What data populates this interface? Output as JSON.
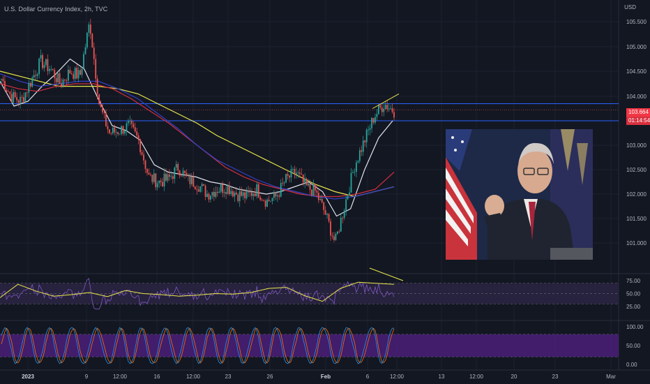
{
  "chart_header": {
    "title": "U.S. Dollar Currency Index, 2h, TVC",
    "currency": "USD"
  },
  "price_tags": {
    "last_price": "103.664",
    "countdown": "01:14:54"
  },
  "colors": {
    "background": "#131722",
    "up_candle": "#26a69a",
    "down_candle": "#ef5350",
    "ma_white": "#e0e3eb",
    "ma_yellow": "#e8e84a",
    "ma_red": "#d32f3f",
    "ma_blue": "#3341c6",
    "rsi_line": "#7e57c2",
    "rsi_band": "#2a2440",
    "stoch_band": "#4a1f78",
    "stoch_k": "#2196f3",
    "stoch_d": "#ff6d00",
    "level_line": "#2962ff"
  },
  "photo": {
    "description_icon": "speaker-photo"
  },
  "chart_data": [
    {
      "type": "candlestick",
      "name": "price",
      "yticks": [
        "105.500",
        "105.000",
        "104.500",
        "104.000",
        "103.000",
        "102.500",
        "102.000",
        "101.500",
        "101.000"
      ],
      "ylim": [
        100.8,
        105.8
      ],
      "x_labels": [
        "2023",
        "9",
        "12:00",
        "16",
        "12:00",
        "23",
        "26",
        "Feb",
        "6",
        "12:00",
        "13",
        "12:00",
        "20",
        "23",
        "Mar"
      ],
      "close_path": [
        104.35,
        104.0,
        103.9,
        104.3,
        104.7,
        104.55,
        104.25,
        104.5,
        104.4,
        105.5,
        103.8,
        103.25,
        103.3,
        103.4,
        103.1,
        102.35,
        102.25,
        102.3,
        102.55,
        102.3,
        102.2,
        102.0,
        102.1,
        102.15,
        102.0,
        101.95,
        102.1,
        101.85,
        101.95,
        102.3,
        102.45,
        102.15,
        102.05,
        101.6,
        101.0,
        101.8,
        102.6,
        103.1,
        103.6,
        103.85,
        103.7
      ],
      "moving_averages": [
        {
          "color": "white",
          "values": [
            104.3,
            103.8,
            103.9,
            104.2,
            104.45,
            104.75,
            104.55,
            103.95,
            103.4,
            103.3,
            103.1,
            102.6,
            102.45,
            102.4,
            102.35,
            102.25,
            102.2,
            102.1,
            102.05,
            102.0,
            102.05,
            102.15,
            102.25,
            102.05,
            101.55,
            101.7,
            102.5,
            103.15,
            103.5
          ]
        },
        {
          "color": "yellow",
          "values": [
            104.5,
            104.4,
            104.3,
            104.2,
            104.2,
            104.2,
            104.15,
            104.05,
            103.85,
            103.65,
            103.45,
            103.2,
            103.0,
            102.8,
            102.6,
            102.4,
            102.2,
            102.05,
            101.95,
            102.05,
            102.15
          ]
        },
        {
          "color": "red",
          "values": [
            104.25,
            104.15,
            104.1,
            104.2,
            104.25,
            104.25,
            104.15,
            103.95,
            103.7,
            103.45,
            103.15,
            102.85,
            102.55,
            102.35,
            102.2,
            102.1,
            102.0,
            101.95,
            101.95,
            102.0,
            102.1,
            102.45
          ]
        },
        {
          "color": "blue",
          "values": [
            104.45,
            104.3,
            104.2,
            104.25,
            104.3,
            104.3,
            104.15,
            103.95,
            103.65,
            103.35,
            103.0,
            102.7,
            102.5,
            102.3,
            102.15,
            102.05,
            101.95,
            101.9,
            101.95,
            102.05,
            102.15
          ]
        }
      ],
      "horizontal_levels": [
        103.85,
        103.72,
        103.5
      ],
      "trendline_start": [
        103.75
      ],
      "trendline_end": [
        104.05
      ]
    },
    {
      "type": "line",
      "name": "rsi",
      "yticks": [
        "75.00",
        "50.00",
        "25.00"
      ],
      "ylim": [
        15,
        85
      ],
      "band": [
        30,
        70
      ]
    },
    {
      "type": "line",
      "name": "stochastic",
      "yticks": [
        "100.00",
        "50.00",
        "0.00"
      ],
      "ylim": [
        -5,
        105
      ],
      "band": [
        20,
        80
      ]
    }
  ]
}
